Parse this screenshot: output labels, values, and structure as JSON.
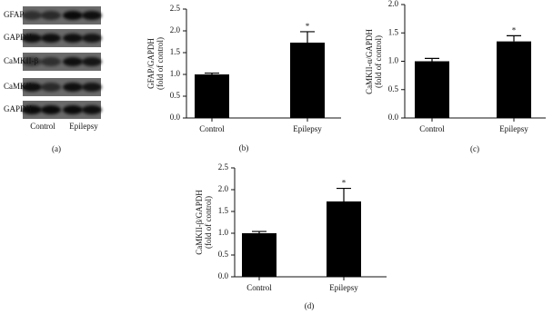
{
  "blot": {
    "rows": [
      "GFAP",
      "GAPDH",
      "CaMKII-β",
      "CaMKII-α",
      "GAPDH"
    ],
    "columns": [
      "Control",
      "Epilepsy"
    ],
    "panel_label": "(a)"
  },
  "chart_data": [
    {
      "type": "bar",
      "panel_label": "(b)",
      "y_label": [
        "GFAP/GAPDH",
        "(fold of control)"
      ],
      "categories": [
        "Control",
        "Epilepsy"
      ],
      "values": [
        1.0,
        1.73
      ],
      "errors": [
        0.03,
        0.25
      ],
      "significance": [
        null,
        "*"
      ],
      "color": "#000000",
      "ylim": [
        0,
        2.5
      ],
      "yticks": [
        {
          "value": 0,
          "label": "0.0"
        },
        {
          "value": 0.5,
          "label": "0.5"
        },
        {
          "value": 1,
          "label": "1.0"
        },
        {
          "value": 1.5,
          "label": "1.5"
        },
        {
          "value": 2,
          "label": "2.0"
        },
        {
          "value": 2.5,
          "label": "2.5"
        }
      ]
    },
    {
      "type": "bar",
      "panel_label": "(c)",
      "y_label": [
        "CaMKII-α/GAPDH",
        "(fold of control)"
      ],
      "categories": [
        "Control",
        "Epilepsy"
      ],
      "values": [
        1.0,
        1.35
      ],
      "errors": [
        0.05,
        0.1
      ],
      "significance": [
        null,
        "*"
      ],
      "color": "#000000",
      "ylim": [
        0,
        2.0
      ],
      "yticks": [
        {
          "value": 0,
          "label": "0.0"
        },
        {
          "value": 0.5,
          "label": "0.5"
        },
        {
          "value": 1,
          "label": "1.0"
        },
        {
          "value": 1.5,
          "label": "1.5"
        },
        {
          "value": 2,
          "label": "2.0"
        }
      ]
    },
    {
      "type": "bar",
      "panel_label": "(d)",
      "y_label": [
        "CaMKII-β/GAPDH",
        "(fold of control)"
      ],
      "categories": [
        "Control",
        "Epilepsy"
      ],
      "values": [
        1.0,
        1.73
      ],
      "errors": [
        0.04,
        0.3
      ],
      "significance": [
        null,
        "*"
      ],
      "color": "#000000",
      "ylim": [
        0,
        2.5
      ],
      "yticks": [
        {
          "value": 0,
          "label": "0.0"
        },
        {
          "value": 0.5,
          "label": "0.5"
        },
        {
          "value": 1,
          "label": "1.0"
        },
        {
          "value": 1.5,
          "label": "1.5"
        },
        {
          "value": 2,
          "label": "2.0"
        },
        {
          "value": 2.5,
          "label": "2.5"
        }
      ]
    }
  ]
}
